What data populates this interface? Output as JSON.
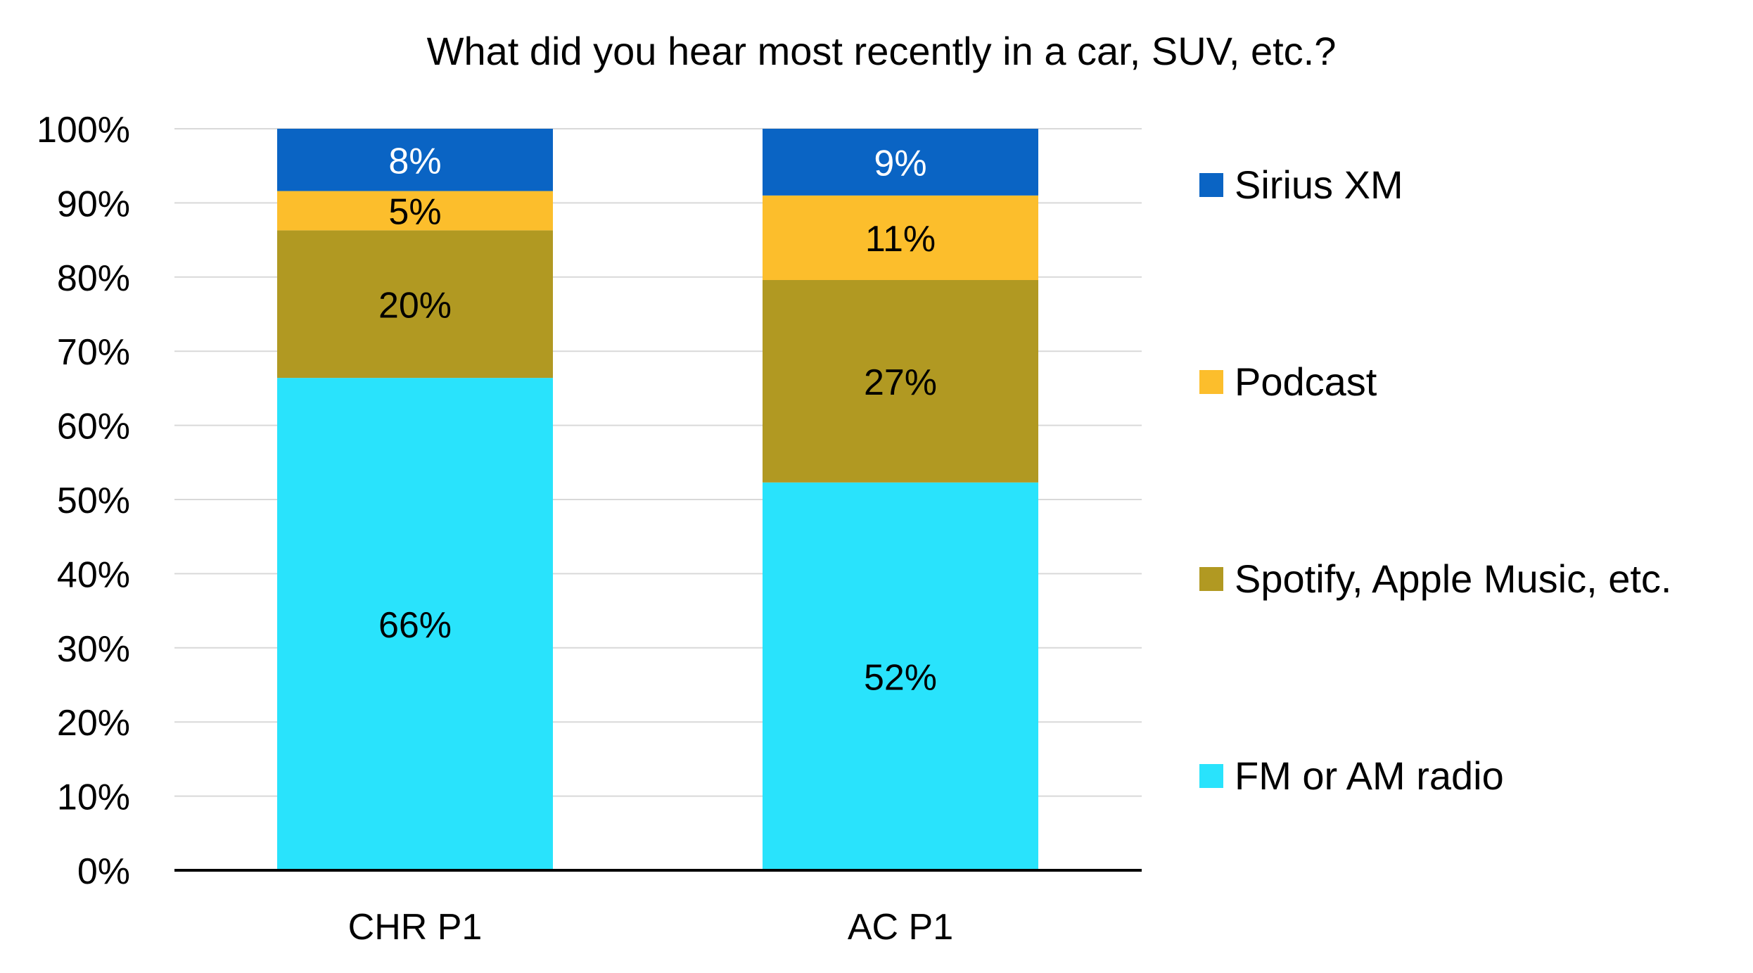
{
  "chart_data": {
    "type": "bar",
    "stacked": true,
    "title": "What did you hear most recently in a car, SUV, etc.?",
    "xlabel": "",
    "ylabel": "",
    "categories": [
      "CHR P1",
      "AC P1"
    ],
    "ylim": [
      0,
      100
    ],
    "y_tick_values": [
      0,
      10,
      20,
      30,
      40,
      50,
      60,
      70,
      80,
      90,
      100
    ],
    "y_tick_labels": [
      "0%",
      "10%",
      "20%",
      "30%",
      "40%",
      "50%",
      "60%",
      "70%",
      "80%",
      "90%",
      "100%"
    ],
    "grid": true,
    "legend_position": "right",
    "series": [
      {
        "name": "FM or AM radio",
        "color": "#29E3FC",
        "label_color": "#000000",
        "values": [
          66.4,
          52.3
        ],
        "labels": [
          "66%",
          "52%"
        ]
      },
      {
        "name": "Spotify, Apple Music, etc.",
        "color": "#B19922",
        "label_color": "#000000",
        "values": [
          19.9,
          27.3
        ],
        "labels": [
          "20%",
          "27%"
        ]
      },
      {
        "name": "Podcast",
        "color": "#FCBE2C",
        "label_color": "#000000",
        "values": [
          5.3,
          11.4
        ],
        "labels": [
          "5%",
          "11%"
        ]
      },
      {
        "name": "Sirius XM",
        "color": "#0A64C4",
        "label_color": "#ffffff",
        "values": [
          8.4,
          9.0
        ],
        "labels": [
          "8%",
          "9%"
        ]
      }
    ],
    "legend_order": [
      "Sirius XM",
      "Podcast",
      "Spotify, Apple Music, etc.",
      "FM or AM radio"
    ],
    "colors": {
      "gridline": "#D9D9D9",
      "axis": "#000000",
      "text": "#000000"
    }
  }
}
